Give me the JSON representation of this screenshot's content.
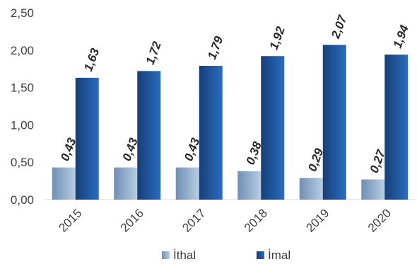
{
  "chart_data": {
    "type": "bar",
    "title": "",
    "xlabel": "",
    "ylabel": "",
    "categories": [
      "2015",
      "2016",
      "2017",
      "2018",
      "2019",
      "2020"
    ],
    "series": [
      {
        "name": "İthal",
        "color": "#7f9fc1",
        "values": [
          0.43,
          0.43,
          0.43,
          0.38,
          0.29,
          0.27
        ],
        "labels": [
          "0,43",
          "0,43",
          "0,43",
          "0,38",
          "0,29",
          "0,27"
        ]
      },
      {
        "name": "İmal",
        "color": "#1f5fa8",
        "values": [
          1.63,
          1.72,
          1.79,
          1.92,
          2.07,
          1.94
        ],
        "labels": [
          "1,63",
          "1,72",
          "1,79",
          "1,92",
          "2,07",
          "1,94"
        ]
      }
    ],
    "ylim": [
      0,
      2.5
    ],
    "yticks": [
      0,
      0.5,
      1.0,
      1.5,
      2.0,
      2.5
    ],
    "ytick_labels": [
      "0,00",
      "0,50",
      "1,00",
      "1,50",
      "2,00",
      "2,50"
    ],
    "grid": false,
    "legend": "bottom"
  }
}
